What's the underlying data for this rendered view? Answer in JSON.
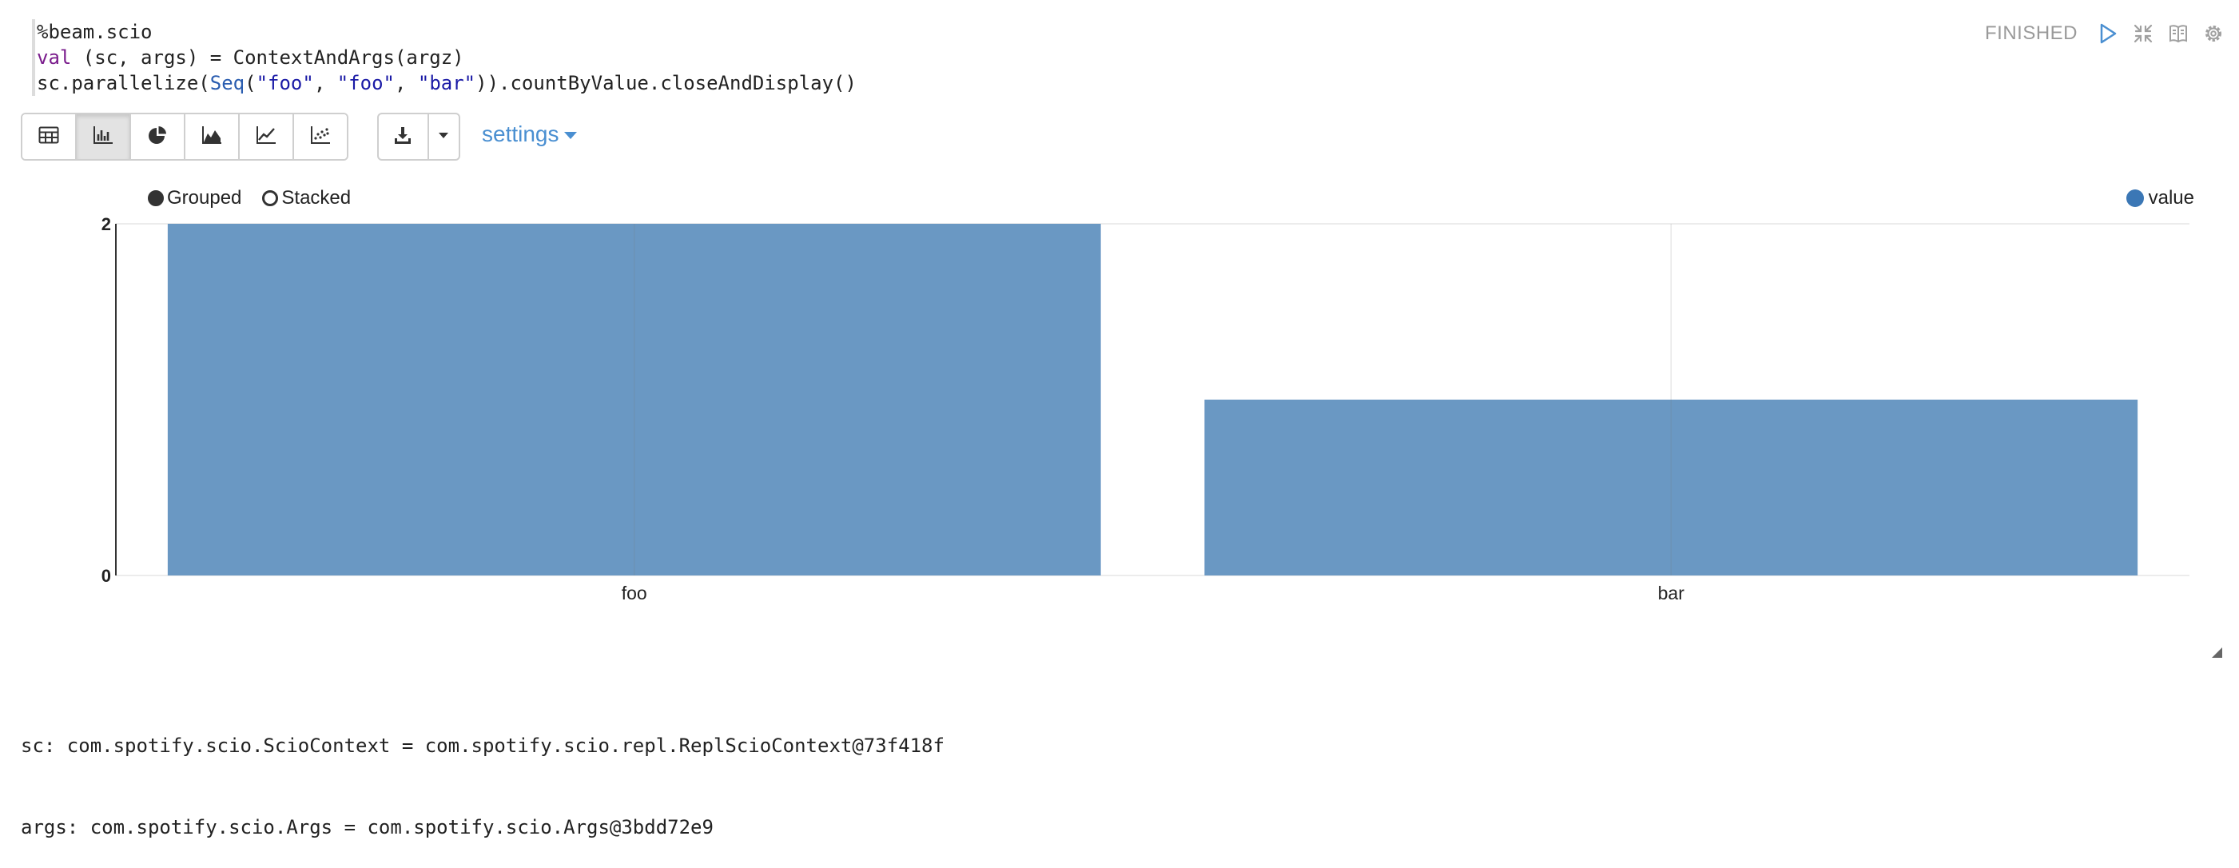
{
  "code": {
    "line1": "%beam.scio",
    "line2": {
      "kw": "val",
      "rest": " (sc, args) = ContextAndArgs(argz)"
    },
    "line3": {
      "pre": "sc.parallelize(",
      "type": "Seq",
      "open": "(",
      "s1": "\"foo\"",
      "c1": ", ",
      "s2": "\"foo\"",
      "c2": ", ",
      "s3": "\"bar\"",
      "post": ")).countByValue.closeAndDisplay()"
    }
  },
  "status": {
    "text": "FINISHED",
    "icons": [
      "run-icon",
      "collapse-icon",
      "book-icon",
      "gear-icon"
    ]
  },
  "toolbar": {
    "chart_types": [
      "table-icon",
      "bar-chart-icon",
      "pie-chart-icon",
      "area-chart-icon",
      "line-chart-icon",
      "scatter-chart-icon"
    ],
    "active": "bar-chart-icon",
    "settings_label": "settings"
  },
  "legend": {
    "grouped_label": "Grouped",
    "stacked_label": "Stacked",
    "selected": "Grouped",
    "series_color": "#3b77b5"
  },
  "chart_data": {
    "type": "bar",
    "categories": [
      "foo",
      "bar"
    ],
    "series": [
      {
        "name": "value",
        "values": [
          2,
          1
        ]
      }
    ],
    "yticks": [
      "0",
      "2"
    ],
    "ylim": [
      0,
      2
    ],
    "bar_color": "#6a98c3",
    "grid": true,
    "legend_position": "top-right"
  },
  "output": {
    "line1": "sc: com.spotify.scio.ScioContext = com.spotify.scio.repl.ReplScioContext@73f418f",
    "line2": "args: com.spotify.scio.Args = com.spotify.scio.Args@3bdd72e9"
  }
}
